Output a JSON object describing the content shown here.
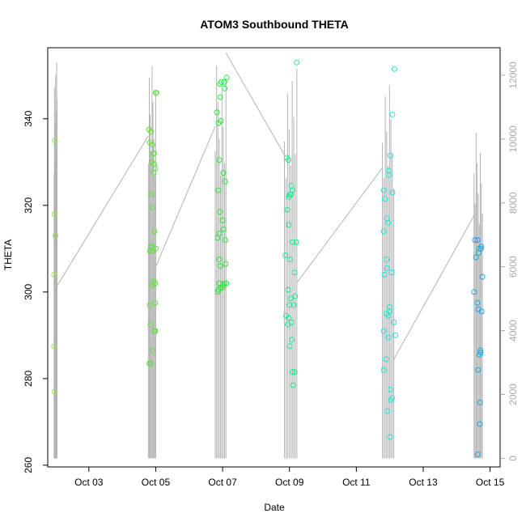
{
  "chart_data": {
    "type": "scatter",
    "title": "ATOM3 Southbound THETA",
    "xlabel": "Date",
    "ylabel": "THETA",
    "x_range_days": [
      1.77,
      15.3
    ],
    "x_ticks": [
      {
        "day": 3,
        "label": "Oct 03"
      },
      {
        "day": 5,
        "label": "Oct 05"
      },
      {
        "day": 7,
        "label": "Oct 07"
      },
      {
        "day": 9,
        "label": "Oct 09"
      },
      {
        "day": 11,
        "label": "Oct 11"
      },
      {
        "day": 13,
        "label": "Oct 13"
      },
      {
        "day": 15,
        "label": "Oct 15"
      }
    ],
    "ylim": [
      259.6,
      356.4
    ],
    "y_ticks": [
      260,
      280,
      300,
      320,
      340
    ],
    "y2lim": [
      -270,
      12860
    ],
    "y2_ticks": [
      0,
      2000,
      4000,
      6000,
      8000,
      10000,
      12000
    ],
    "series": [
      {
        "color": "#8ee64e",
        "points": [
          [
            1.98,
            335
          ],
          [
            1.97,
            318
          ],
          [
            2.0,
            313
          ],
          [
            1.96,
            304
          ],
          [
            1.96,
            287.5
          ],
          [
            1.97,
            277
          ]
        ]
      },
      {
        "color": "#5ee23a",
        "points": [
          [
            4.8,
            337.5
          ],
          [
            4.86,
            337
          ],
          [
            4.82,
            334.5
          ],
          [
            4.9,
            334
          ],
          [
            4.93,
            332
          ],
          [
            4.95,
            332
          ],
          [
            4.89,
            330
          ],
          [
            4.95,
            329.5
          ],
          [
            5.0,
            346
          ],
          [
            5.02,
            346
          ],
          [
            4.99,
            328.5
          ],
          [
            4.93,
            327.5
          ],
          [
            4.87,
            322.5
          ],
          [
            4.91,
            319.5
          ],
          [
            4.96,
            314
          ],
          [
            4.85,
            310.5
          ],
          [
            4.89,
            310.5
          ],
          [
            4.92,
            309.5
          ],
          [
            5.0,
            310
          ],
          [
            4.83,
            309.5
          ],
          [
            4.94,
            302.5
          ],
          [
            4.98,
            302
          ],
          [
            4.89,
            301.5
          ],
          [
            4.98,
            297.5
          ],
          [
            4.82,
            297
          ],
          [
            4.84,
            292.5
          ],
          [
            4.96,
            291
          ],
          [
            4.99,
            291
          ],
          [
            4.91,
            286.5
          ],
          [
            4.85,
            283.5
          ],
          [
            4.81,
            283.5
          ]
        ]
      },
      {
        "color": "#2ee43c",
        "points": [
          [
            6.92,
            348
          ],
          [
            6.96,
            348.5
          ],
          [
            7.05,
            348.5
          ],
          [
            7.12,
            349.5
          ],
          [
            7.06,
            347
          ],
          [
            6.93,
            345
          ],
          [
            6.83,
            341.5
          ],
          [
            6.95,
            339.5
          ],
          [
            6.88,
            339
          ],
          [
            6.9,
            330.5
          ],
          [
            7.02,
            327.5
          ],
          [
            7.08,
            325.5
          ],
          [
            6.87,
            323.5
          ],
          [
            6.92,
            318.5
          ],
          [
            7.0,
            316.5
          ],
          [
            7.03,
            314.5
          ],
          [
            6.9,
            313.5
          ],
          [
            7.08,
            312
          ],
          [
            6.85,
            312.5
          ],
          [
            6.9,
            307.5
          ],
          [
            7.09,
            306.5
          ],
          [
            6.93,
            306
          ],
          [
            6.9,
            302
          ],
          [
            7.02,
            301.5
          ],
          [
            7.05,
            302
          ],
          [
            7.11,
            302
          ],
          [
            6.94,
            301
          ],
          [
            6.88,
            300.5
          ],
          [
            6.86,
            300
          ],
          [
            7.0,
            301
          ]
        ]
      },
      {
        "color": "#1ee88e",
        "points": [
          [
            8.92,
            331
          ],
          [
            8.97,
            330.5
          ],
          [
            9.06,
            324.5
          ],
          [
            9.09,
            323.5
          ],
          [
            9.01,
            322.5
          ],
          [
            8.99,
            322
          ],
          [
            9.04,
            322.5
          ],
          [
            8.93,
            319
          ],
          [
            8.98,
            315.5
          ],
          [
            9.09,
            311.5
          ],
          [
            9.2,
            311.5
          ],
          [
            8.88,
            308.5
          ],
          [
            9.02,
            307.5
          ],
          [
            9.15,
            304.5
          ],
          [
            8.96,
            300.5
          ],
          [
            9.04,
            298.5
          ],
          [
            9.17,
            299
          ],
          [
            9.0,
            297
          ],
          [
            9.13,
            297
          ],
          [
            8.9,
            294.5
          ],
          [
            8.98,
            294
          ],
          [
            9.06,
            293
          ],
          [
            8.95,
            292.5
          ],
          [
            9.07,
            289
          ],
          [
            9.01,
            287.5
          ],
          [
            9.09,
            281.5
          ],
          [
            9.16,
            281.5
          ],
          [
            9.11,
            278.5
          ],
          [
            9.22,
            353
          ]
        ]
      },
      {
        "color": "#22e6d2",
        "points": [
          [
            11.82,
            323.5
          ],
          [
            12.02,
            331.5
          ],
          [
            12.08,
            323
          ],
          [
            11.97,
            328
          ],
          [
            11.98,
            327
          ],
          [
            11.85,
            321.5
          ],
          [
            11.92,
            317
          ],
          [
            11.95,
            316
          ],
          [
            11.82,
            314
          ],
          [
            11.9,
            307.5
          ],
          [
            11.92,
            305.5
          ],
          [
            12.06,
            304.5
          ],
          [
            11.84,
            304
          ],
          [
            12.0,
            296.5
          ],
          [
            11.99,
            295.5
          ],
          [
            11.9,
            295
          ],
          [
            11.96,
            294.5
          ],
          [
            12.12,
            293
          ],
          [
            11.82,
            291
          ],
          [
            11.96,
            289.5
          ],
          [
            12.17,
            290
          ],
          [
            11.89,
            284.5
          ],
          [
            11.82,
            282
          ],
          [
            12.02,
            277.5
          ],
          [
            12.07,
            275.5
          ],
          [
            12.03,
            275
          ],
          [
            11.93,
            272.5
          ],
          [
            12.01,
            266.5
          ],
          [
            12.14,
            351.5
          ],
          [
            12.08,
            341
          ]
        ]
      },
      {
        "color": "#1ea8e4",
        "points": [
          [
            14.55,
            312
          ],
          [
            14.63,
            312
          ],
          [
            14.74,
            310.5
          ],
          [
            14.67,
            310
          ],
          [
            14.73,
            310
          ],
          [
            14.58,
            308
          ],
          [
            14.66,
            309
          ],
          [
            14.77,
            303.5
          ],
          [
            14.52,
            300
          ],
          [
            14.62,
            297.5
          ],
          [
            14.65,
            296
          ],
          [
            14.75,
            295.5
          ],
          [
            14.71,
            286.5
          ],
          [
            14.72,
            286
          ],
          [
            14.68,
            285.5
          ],
          [
            14.64,
            282
          ],
          [
            14.7,
            274.5
          ],
          [
            14.69,
            269.5
          ],
          [
            14.63,
            262.5
          ]
        ]
      }
    ],
    "secondary_series": {
      "color": "#b3b3b3",
      "clusters": [
        {
          "start": 1.96,
          "end": 2.05,
          "top": 12400,
          "bottom": 0
        },
        {
          "start": 4.78,
          "end": 5.0,
          "top": 12300,
          "bottom": 0
        },
        {
          "start": 6.78,
          "end": 7.1,
          "top": 12300,
          "bottom": 0
        },
        {
          "start": 8.85,
          "end": 9.22,
          "top": 12200,
          "bottom": 0
        },
        {
          "start": 11.78,
          "end": 12.12,
          "top": 11700,
          "bottom": 0
        },
        {
          "start": 14.52,
          "end": 14.77,
          "top": 10200,
          "bottom": 0
        }
      ],
      "ramps": [
        {
          "x0": 2.05,
          "y0": 5400,
          "x1": 4.78,
          "y1": 10100
        },
        {
          "x0": 5.0,
          "y0": 6000,
          "x1": 6.78,
          "y1": 10400
        },
        {
          "x0": 7.1,
          "y0": 12700,
          "x1": 8.85,
          "y1": 9500
        },
        {
          "x0": 9.22,
          "y0": 5500,
          "x1": 11.78,
          "y1": 9100
        },
        {
          "x0": 12.12,
          "y0": 3100,
          "x1": 14.52,
          "y1": 7600
        }
      ]
    }
  }
}
